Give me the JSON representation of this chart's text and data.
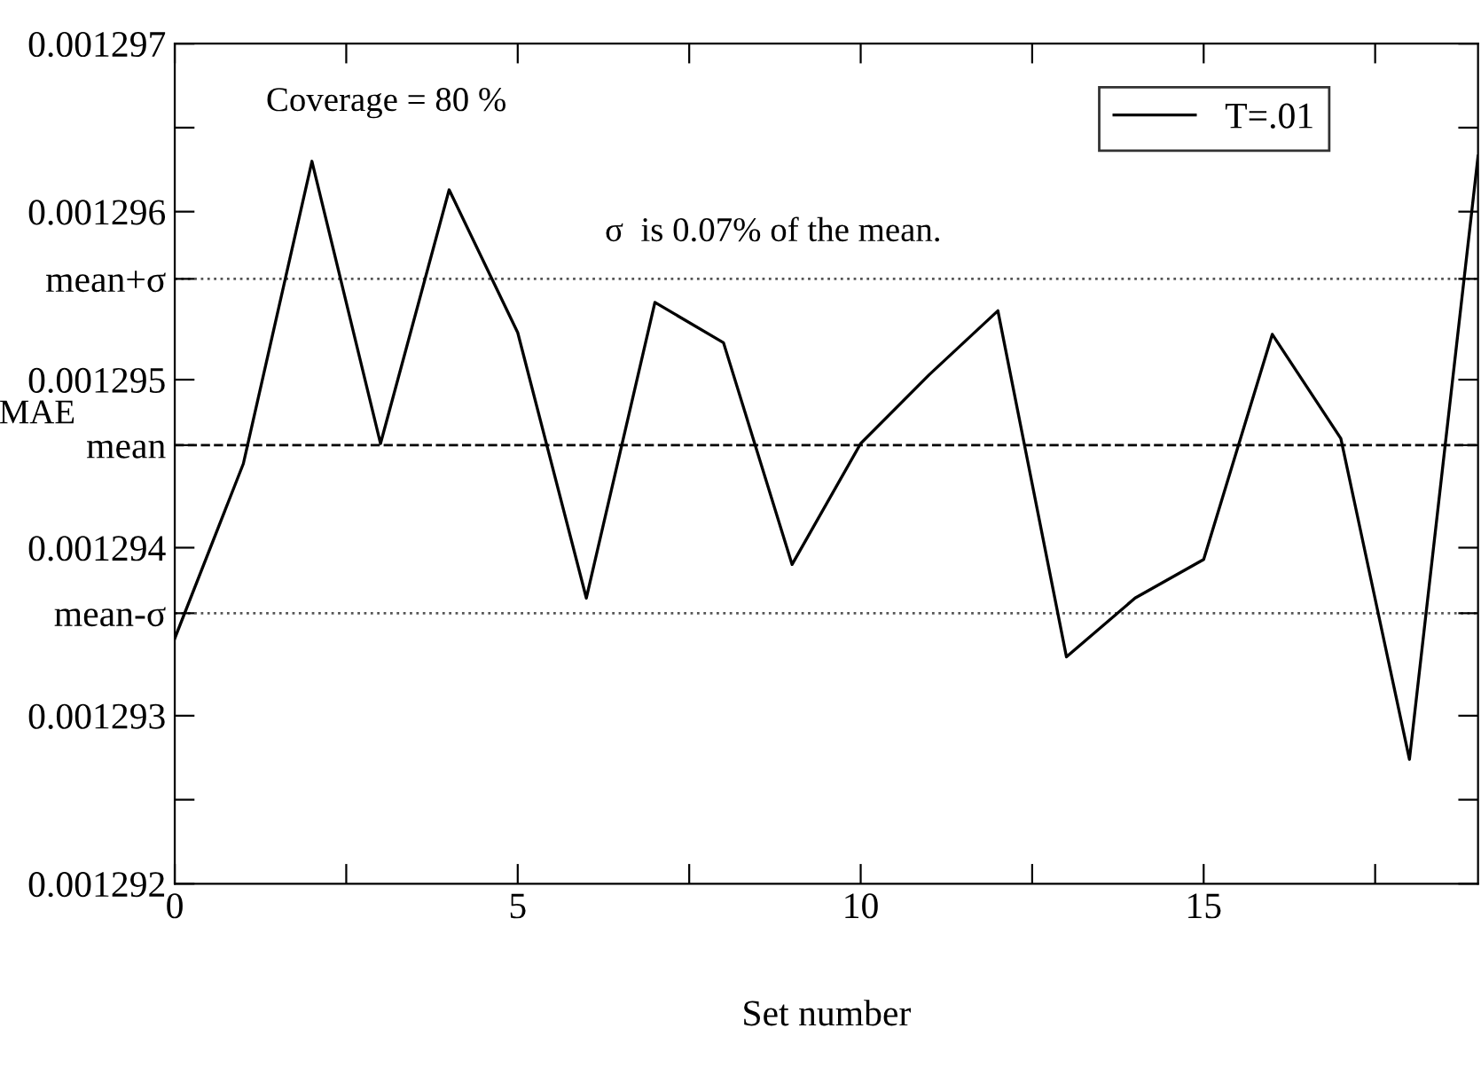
{
  "chart_data": {
    "type": "line",
    "xlabel": "Set number",
    "ylabel": "MAE",
    "x": [
      0,
      1,
      2,
      3,
      4,
      5,
      6,
      7,
      8,
      9,
      10,
      11,
      12,
      13,
      14,
      15,
      16,
      17,
      18,
      19
    ],
    "series": [
      {
        "name": "T=.01",
        "color": "#000000",
        "values": [
          0.00129346,
          0.0012945,
          0.0012963,
          0.00129462,
          0.00129613,
          0.00129528,
          0.0012937,
          0.00129546,
          0.00129522,
          0.0012939,
          0.00129462,
          0.00129503,
          0.00129541,
          0.00129335,
          0.0012937,
          0.00129393,
          0.00129527,
          0.00129465,
          0.00129274,
          0.00129633
        ]
      }
    ],
    "xlim": [
      0,
      19
    ],
    "xticks": [
      0,
      {
        "value": 2.5,
        "label": null
      },
      5,
      {
        "value": 7.5,
        "label": null
      },
      10,
      {
        "value": 12.5,
        "label": null
      },
      15,
      {
        "value": 17.5,
        "label": null
      }
    ],
    "ylim": [
      0.001292,
      0.001297
    ],
    "yticks": [
      0.001292,
      {
        "value": 0.0012925,
        "label": null
      },
      0.001293,
      {
        "value": 0.00129361,
        "label": "mean-σ"
      },
      0.001294,
      {
        "value": 0.00129461,
        "label": "mean"
      },
      0.001295,
      {
        "value": 0.0012956,
        "label": "mean+σ"
      },
      0.001296,
      {
        "value": 0.0012965,
        "label": null
      },
      0.001297
    ],
    "ref_lines": [
      {
        "axis": "y",
        "value": 0.00129461,
        "line_style": "dashed",
        "color": "#000000"
      },
      {
        "axis": "y",
        "value": 0.0012956,
        "line_style": "dotted",
        "color": "#555555"
      },
      {
        "axis": "y",
        "value": 0.00129361,
        "line_style": "dotted",
        "color": "#555555"
      }
    ],
    "annotations": [
      "Coverage = 80 %",
      "σ  is 0.07% of the mean."
    ],
    "legend": "top right",
    "grid": false,
    "marker": "none",
    "line_style": "solid"
  }
}
